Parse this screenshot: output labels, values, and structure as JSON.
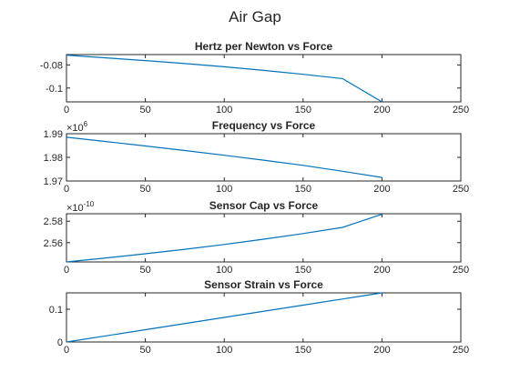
{
  "figure": {
    "title": "Air Gap"
  },
  "chart_data": [
    {
      "type": "line",
      "title": "Hertz per Newton vs Force",
      "xlabel": "",
      "ylabel": "",
      "xlim": [
        0,
        250
      ],
      "ylim": [
        -0.112,
        -0.071
      ],
      "x_ticks": [
        0,
        50,
        100,
        150,
        200,
        250
      ],
      "x_tick_labels": [
        "0",
        "50",
        "100",
        "150",
        "200",
        "250"
      ],
      "y_ticks": [
        -0.08,
        -0.1
      ],
      "y_tick_labels": [
        "-0.08",
        "-0.1"
      ],
      "exponent": "",
      "grid": false,
      "color": "#0072BD",
      "series": [
        {
          "x": [
            0,
            25,
            50,
            75,
            100,
            125,
            150,
            175,
            200
          ],
          "y": [
            -0.0715,
            -0.0738,
            -0.0762,
            -0.0788,
            -0.0816,
            -0.0847,
            -0.0881,
            -0.0918,
            -0.112
          ]
        }
      ]
    },
    {
      "type": "line",
      "title": "Frequency vs Force",
      "xlabel": "",
      "ylabel": "",
      "xlim": [
        0,
        250
      ],
      "ylim": [
        1.97,
        1.99
      ],
      "x_ticks": [
        0,
        50,
        100,
        150,
        200,
        250
      ],
      "x_tick_labels": [
        "0",
        "50",
        "100",
        "150",
        "200",
        "250"
      ],
      "y_ticks": [
        1.97,
        1.98,
        1.99
      ],
      "y_tick_labels": [
        "1.97",
        "1.98",
        "1.99"
      ],
      "exponent": "6",
      "grid": false,
      "color": "#0072BD",
      "series": [
        {
          "x": [
            0,
            25,
            50,
            75,
            100,
            125,
            150,
            175,
            200
          ],
          "y": [
            1.9885,
            1.9867,
            1.9848,
            1.9829,
            1.9809,
            1.9788,
            1.9766,
            1.9741,
            1.9715
          ]
        }
      ]
    },
    {
      "type": "line",
      "title": "Sensor Cap vs Force",
      "xlabel": "",
      "ylabel": "",
      "xlim": [
        0,
        250
      ],
      "ylim": [
        2.542,
        2.587
      ],
      "x_ticks": [
        0,
        50,
        100,
        150,
        200,
        250
      ],
      "x_tick_labels": [
        "0",
        "50",
        "100",
        "150",
        "200",
        "250"
      ],
      "y_ticks": [
        2.56,
        2.58
      ],
      "y_tick_labels": [
        "2.56",
        "2.58"
      ],
      "exponent": "-10",
      "grid": false,
      "color": "#0072BD",
      "series": [
        {
          "x": [
            0,
            25,
            50,
            75,
            100,
            125,
            150,
            175,
            200
          ],
          "y": [
            2.542,
            2.5457,
            2.5496,
            2.5538,
            2.5583,
            2.5632,
            2.5685,
            2.5743,
            2.5865
          ]
        }
      ]
    },
    {
      "type": "line",
      "title": "Sensor Strain vs Force",
      "xlabel": "",
      "ylabel": "",
      "xlim": [
        0,
        250
      ],
      "ylim": [
        0,
        0.15
      ],
      "x_ticks": [
        0,
        50,
        100,
        150,
        200,
        250
      ],
      "x_tick_labels": [
        "0",
        "50",
        "100",
        "150",
        "200",
        "250"
      ],
      "y_ticks": [
        0,
        0.1
      ],
      "y_tick_labels": [
        "0",
        "0.1"
      ],
      "exponent": "",
      "grid": false,
      "color": "#0072BD",
      "series": [
        {
          "x": [
            0,
            50,
            100,
            150,
            200
          ],
          "y": [
            0,
            0.0375,
            0.075,
            0.1125,
            0.15
          ]
        }
      ]
    }
  ]
}
